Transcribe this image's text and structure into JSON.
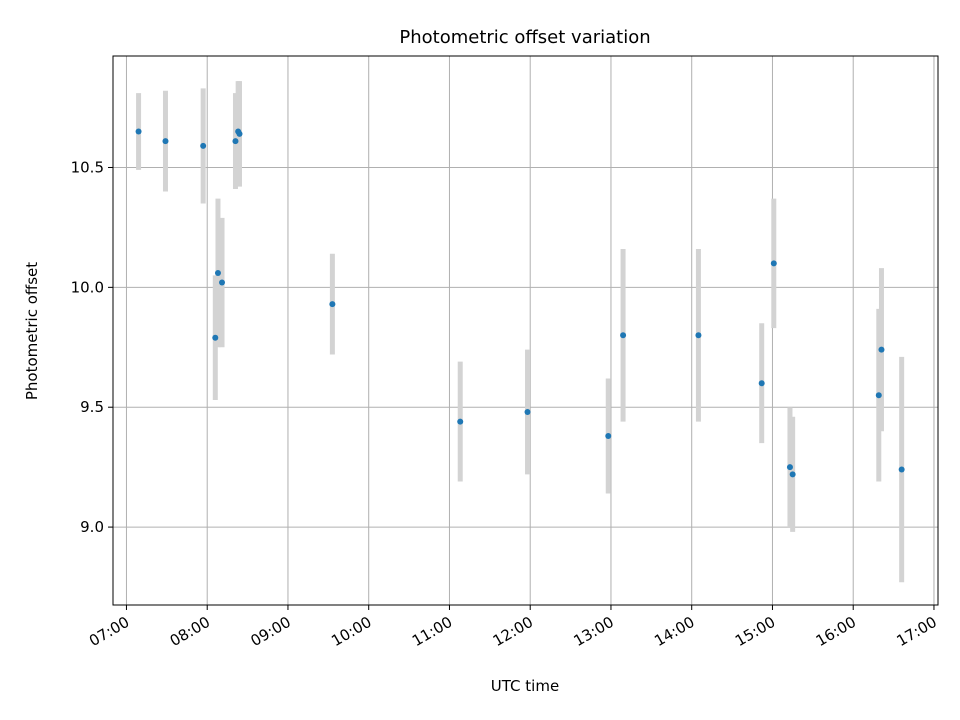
{
  "chart_data": {
    "type": "scatter",
    "title": "Photometric offset variation",
    "xlabel": "UTC time",
    "ylabel": "Photometric offset",
    "x_tick_labels": [
      "07:00",
      "08:00",
      "09:00",
      "10:00",
      "11:00",
      "12:00",
      "13:00",
      "14:00",
      "15:00",
      "16:00",
      "17:00"
    ],
    "y_tick_labels": [
      "9.0",
      "9.5",
      "10.0",
      "10.5"
    ],
    "y_ticks": [
      9.0,
      9.5,
      10.0,
      10.5
    ],
    "xlim": [
      "06:50",
      "17:03"
    ],
    "ylim": [
      8.675,
      10.965
    ],
    "grid": true,
    "colors": {
      "marker": "#1f77b4",
      "errorbar": "#d3d3d3",
      "grid": "#b0b0b0"
    },
    "series": [
      {
        "points": [
          {
            "x": "07:09",
            "y": 10.65,
            "err": 0.16
          },
          {
            "x": "07:29",
            "y": 10.61,
            "err": 0.21
          },
          {
            "x": "07:57",
            "y": 10.59,
            "err": 0.24
          },
          {
            "x": "08:06",
            "y": 9.79,
            "err": 0.26
          },
          {
            "x": "08:08",
            "y": 10.06,
            "err": 0.31
          },
          {
            "x": "08:11",
            "y": 10.02,
            "err": 0.27
          },
          {
            "x": "08:21",
            "y": 10.61,
            "err": 0.2
          },
          {
            "x": "08:23",
            "y": 10.65,
            "err": 0.21
          },
          {
            "x": "08:24",
            "y": 10.64,
            "err": 0.22
          },
          {
            "x": "09:33",
            "y": 9.93,
            "err": 0.21
          },
          {
            "x": "11:08",
            "y": 9.44,
            "err": 0.25
          },
          {
            "x": "11:58",
            "y": 9.48,
            "err": 0.26
          },
          {
            "x": "12:58",
            "y": 9.38,
            "err": 0.24
          },
          {
            "x": "13:09",
            "y": 9.8,
            "err": 0.36
          },
          {
            "x": "14:05",
            "y": 9.8,
            "err": 0.36
          },
          {
            "x": "14:52",
            "y": 9.6,
            "err": 0.25
          },
          {
            "x": "15:01",
            "y": 10.1,
            "err": 0.27
          },
          {
            "x": "15:13",
            "y": 9.25,
            "err": 0.25
          },
          {
            "x": "15:15",
            "y": 9.22,
            "err": 0.24
          },
          {
            "x": "16:19",
            "y": 9.55,
            "err": 0.36
          },
          {
            "x": "16:21",
            "y": 9.74,
            "err": 0.34
          },
          {
            "x": "16:36",
            "y": 9.24,
            "err": 0.47
          }
        ]
      }
    ]
  }
}
